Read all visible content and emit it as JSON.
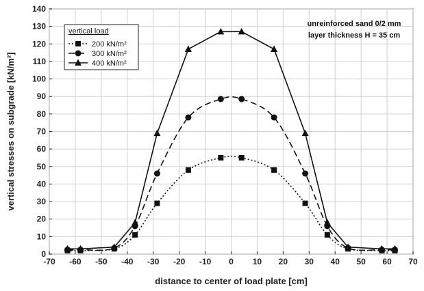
{
  "chart_data": {
    "type": "line",
    "xlabel": "distance to center of load plate  [cm]",
    "ylabel": "vertical stresses on subgrade [kN/m²]",
    "xlim": [
      -70,
      70
    ],
    "ylim": [
      0,
      140
    ],
    "xticks": [
      -70,
      -60,
      -50,
      -40,
      -30,
      -20,
      -10,
      0,
      10,
      20,
      30,
      40,
      50,
      60,
      70
    ],
    "yticks": [
      0,
      10,
      20,
      30,
      40,
      50,
      60,
      70,
      80,
      90,
      100,
      110,
      120,
      130,
      140
    ],
    "grid": true,
    "legend": {
      "title": "vertical load",
      "position": "top-left"
    },
    "annotation": [
      "unreinforced sand 0/2 mm",
      "layer thickness H = 35 cm"
    ],
    "series": [
      {
        "name": "200 kN/m²",
        "marker": "square",
        "line": "dotted",
        "x": [
          -63,
          -58,
          -45,
          -37,
          -28.5,
          -16.5,
          -4,
          4,
          16.5,
          28.5,
          37,
          45,
          58,
          63
        ],
        "y": [
          2,
          2,
          3,
          11,
          29,
          48,
          55,
          55,
          48,
          29,
          11,
          3,
          2,
          2
        ]
      },
      {
        "name": "300 kN/m²",
        "marker": "circle",
        "line": "dashed",
        "x": [
          -63,
          -58,
          -45,
          -37,
          -28.5,
          -16.5,
          -4,
          4,
          16.5,
          28.5,
          37,
          45,
          58,
          63
        ],
        "y": [
          2.5,
          2.5,
          3.5,
          16,
          46,
          78,
          88.5,
          88.5,
          78,
          46,
          16,
          3.5,
          2.5,
          2.5
        ]
      },
      {
        "name": "400 kN/m²",
        "marker": "triangle",
        "line": "solid",
        "x": [
          -63,
          -58,
          -45,
          -37,
          -28.5,
          -16.5,
          -4,
          4,
          16.5,
          28.5,
          37,
          45,
          58,
          63
        ],
        "y": [
          3,
          3,
          4,
          18,
          69,
          117,
          127,
          127,
          117,
          69,
          18,
          4,
          3,
          3
        ]
      }
    ]
  }
}
